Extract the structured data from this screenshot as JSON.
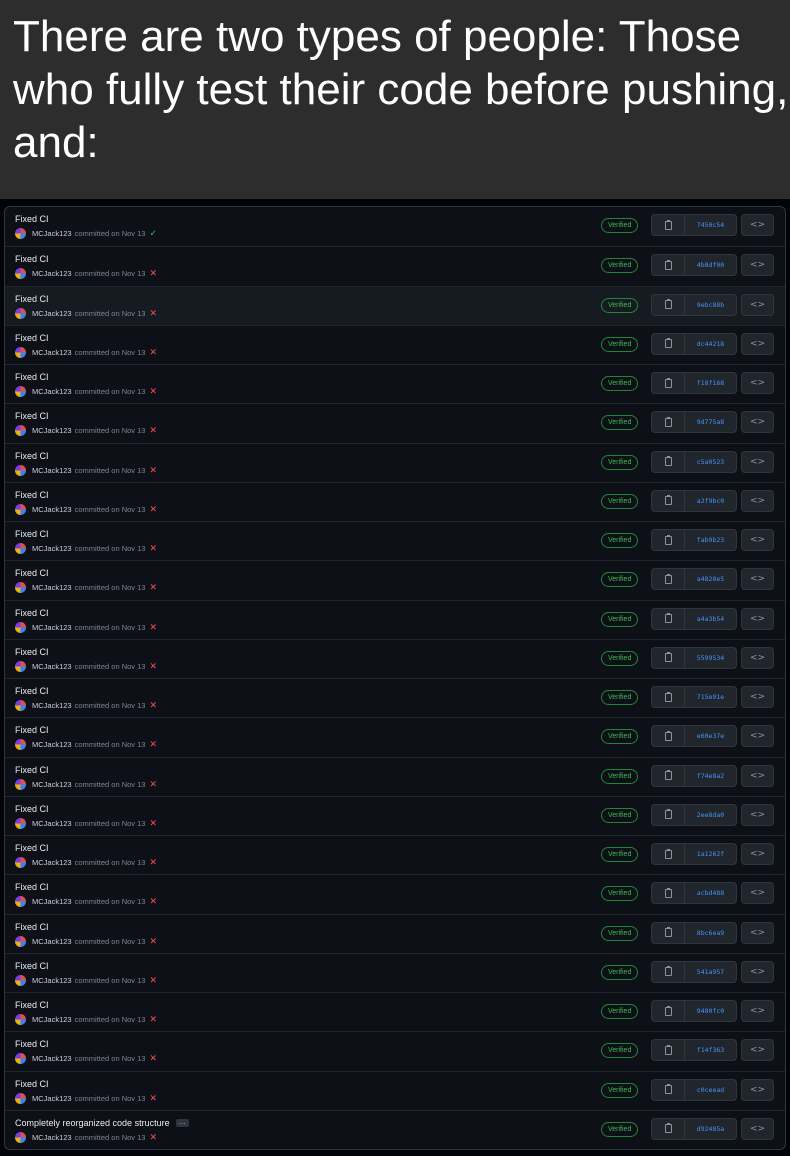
{
  "caption": "There are two types of people: Those who fully test their code before pushing, and:",
  "colors": {
    "verified": "#3fb950",
    "fail": "#f85149",
    "hash": "#4493f8"
  },
  "verified_label": "Verified",
  "commits": [
    {
      "title": "Fixed CI",
      "author": "MCJack123",
      "date": "committed on Nov 13",
      "status": "success",
      "sha": "7450c54"
    },
    {
      "title": "Fixed CI",
      "author": "MCJack123",
      "date": "committed on Nov 13",
      "status": "failure",
      "sha": "4b8df00"
    },
    {
      "title": "Fixed CI",
      "author": "MCJack123",
      "date": "committed on Nov 13",
      "status": "failure",
      "sha": "9ebc88b"
    },
    {
      "title": "Fixed CI",
      "author": "MCJack123",
      "date": "committed on Nov 13",
      "status": "failure",
      "sha": "dc44218"
    },
    {
      "title": "Fixed CI",
      "author": "MCJack123",
      "date": "committed on Nov 13",
      "status": "failure",
      "sha": "f18f168"
    },
    {
      "title": "Fixed CI",
      "author": "MCJack123",
      "date": "committed on Nov 13",
      "status": "failure",
      "sha": "9d775a8"
    },
    {
      "title": "Fixed CI",
      "author": "MCJack123",
      "date": "committed on Nov 13",
      "status": "failure",
      "sha": "c5a0523"
    },
    {
      "title": "Fixed CI",
      "author": "MCJack123",
      "date": "committed on Nov 13",
      "status": "failure",
      "sha": "a2f9bc0"
    },
    {
      "title": "Fixed CI",
      "author": "MCJack123",
      "date": "committed on Nov 13",
      "status": "failure",
      "sha": "fab9b23"
    },
    {
      "title": "Fixed CI",
      "author": "MCJack123",
      "date": "committed on Nov 13",
      "status": "failure",
      "sha": "a4828e5"
    },
    {
      "title": "Fixed CI",
      "author": "MCJack123",
      "date": "committed on Nov 13",
      "status": "failure",
      "sha": "a4a3b54"
    },
    {
      "title": "Fixed CI",
      "author": "MCJack123",
      "date": "committed on Nov 13",
      "status": "failure",
      "sha": "5599534"
    },
    {
      "title": "Fixed CI",
      "author": "MCJack123",
      "date": "committed on Nov 13",
      "status": "failure",
      "sha": "715e91e"
    },
    {
      "title": "Fixed CI",
      "author": "MCJack123",
      "date": "committed on Nov 13",
      "status": "failure",
      "sha": "e60e37e"
    },
    {
      "title": "Fixed CI",
      "author": "MCJack123",
      "date": "committed on Nov 13",
      "status": "failure",
      "sha": "f74e8a2"
    },
    {
      "title": "Fixed CI",
      "author": "MCJack123",
      "date": "committed on Nov 13",
      "status": "failure",
      "sha": "2ee8da0"
    },
    {
      "title": "Fixed CI",
      "author": "MCJack123",
      "date": "committed on Nov 13",
      "status": "failure",
      "sha": "1a1262f"
    },
    {
      "title": "Fixed CI",
      "author": "MCJack123",
      "date": "committed on Nov 13",
      "status": "failure",
      "sha": "acbd488"
    },
    {
      "title": "Fixed CI",
      "author": "MCJack123",
      "date": "committed on Nov 13",
      "status": "failure",
      "sha": "8bc6ea9"
    },
    {
      "title": "Fixed CI",
      "author": "MCJack123",
      "date": "committed on Nov 13",
      "status": "failure",
      "sha": "541a957"
    },
    {
      "title": "Fixed CI",
      "author": "MCJack123",
      "date": "committed on Nov 13",
      "status": "failure",
      "sha": "9480fc0"
    },
    {
      "title": "Fixed CI",
      "author": "MCJack123",
      "date": "committed on Nov 13",
      "status": "failure",
      "sha": "f14f363"
    },
    {
      "title": "Fixed CI",
      "author": "MCJack123",
      "date": "committed on Nov 13",
      "status": "failure",
      "sha": "c0ceead"
    },
    {
      "title": "Completely reorganized code structure",
      "author": "MCJack123",
      "date": "committed on Nov 13",
      "status": "failure",
      "sha": "d92485a",
      "ellipsis": "…"
    }
  ]
}
